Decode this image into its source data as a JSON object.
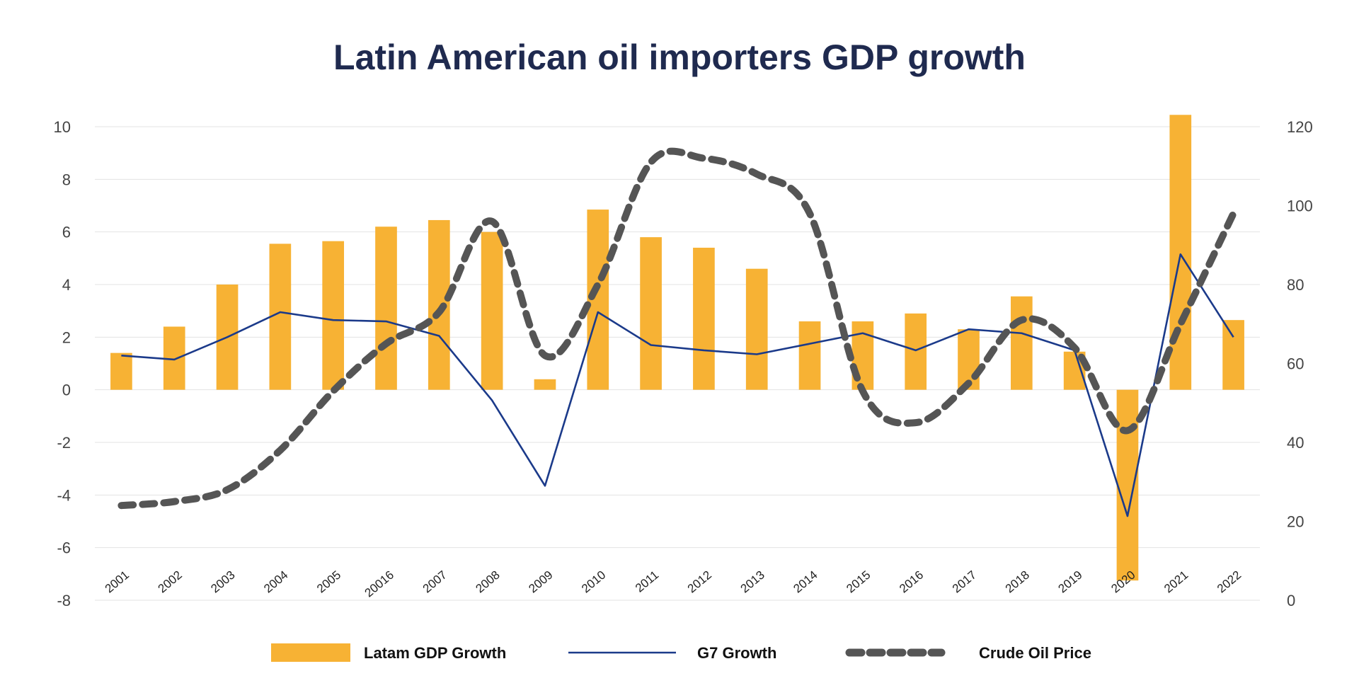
{
  "chart_data": {
    "type": "bar",
    "title": "Latin American oil importers GDP growth",
    "categories": [
      "2001",
      "2002",
      "2003",
      "2004",
      "2005",
      "20016",
      "2007",
      "2008",
      "2009",
      "2010",
      "2011",
      "2012",
      "2013",
      "2014",
      "2015",
      "2016",
      "2017",
      "2018",
      "2019",
      "2020",
      "2021",
      "2022"
    ],
    "series": [
      {
        "name": "Latam GDP Growth",
        "type": "bar",
        "axis": "left",
        "color": "#f7b234",
        "values": [
          1.4,
          2.4,
          4.0,
          5.55,
          5.65,
          6.2,
          6.45,
          6.0,
          0.4,
          6.85,
          5.8,
          5.4,
          4.6,
          2.6,
          2.6,
          2.9,
          2.3,
          3.55,
          1.45,
          -7.25,
          10.45,
          2.65
        ]
      },
      {
        "name": "G7 Growth",
        "type": "line",
        "axis": "left",
        "color": "#1b3a8a",
        "values": [
          1.3,
          1.15,
          2.0,
          2.95,
          2.65,
          2.6,
          2.05,
          -0.4,
          -3.65,
          2.95,
          1.7,
          1.5,
          1.35,
          1.75,
          2.15,
          1.5,
          2.3,
          2.15,
          1.5,
          -4.8,
          5.15,
          2.0
        ]
      },
      {
        "name": "Crude Oil Price",
        "type": "line",
        "style": "dashed",
        "axis": "right",
        "color": "#555555",
        "values": [
          24,
          25,
          28,
          38,
          53,
          65,
          73,
          96,
          62,
          80,
          111,
          112,
          108,
          98,
          53,
          45,
          55,
          71,
          64,
          43,
          70,
          98
        ]
      }
    ],
    "y_left": {
      "min": -8,
      "max": 10,
      "ticks": [
        "10",
        "8",
        "6",
        "4",
        "2",
        "0",
        "-2",
        "-4",
        "-6",
        "-8"
      ]
    },
    "y_right": {
      "min": 0,
      "max": 120,
      "ticks": [
        "120",
        "100",
        "80",
        "60",
        "40",
        "20",
        "0"
      ]
    },
    "grid": true,
    "legend": "bottom"
  }
}
